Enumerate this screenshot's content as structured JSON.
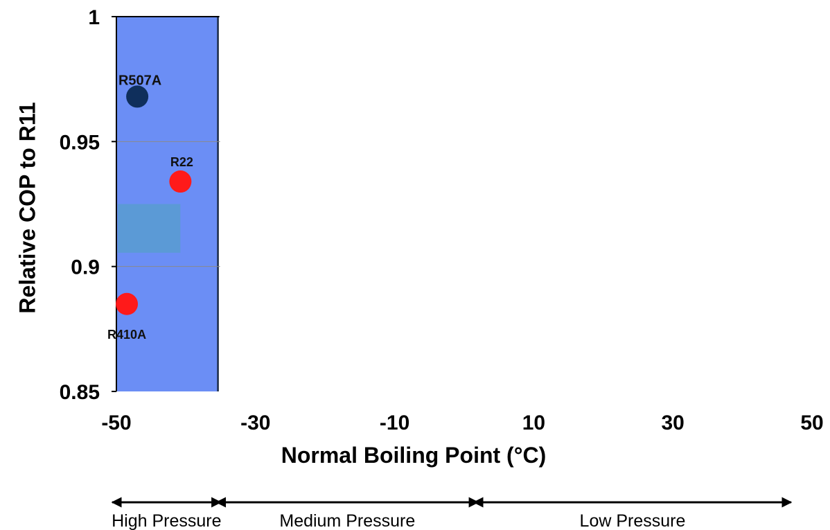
{
  "chart_data": {
    "type": "scatter",
    "xlabel": "Normal Boiling Point (°C)",
    "ylabel": "Relative COP to R11",
    "xlim": [
      -50,
      50
    ],
    "ylim": [
      0.85,
      1.0
    ],
    "x_ticks": [
      -50,
      -30,
      -10,
      10,
      30,
      50
    ],
    "x_tick_labels": [
      "-50",
      "-30",
      "-10",
      "10",
      "30",
      "50"
    ],
    "y_ticks": [
      0.85,
      0.9,
      0.95,
      1.0
    ],
    "y_tick_labels": [
      "0.85",
      "0.9",
      "0.95",
      "1"
    ],
    "grid": "horizontal",
    "points": [
      {
        "name": "R507A",
        "x": -47,
        "y": 0.968,
        "color": "#0f2f5c"
      },
      {
        "name": "R22",
        "x": -40.8,
        "y": 0.934,
        "color": "#ff1a1a"
      },
      {
        "name": "R410A",
        "x": -48.5,
        "y": 0.885,
        "color": "#ff1a1a"
      }
    ],
    "shaded_region": {
      "x": [
        -50,
        -35.4
      ],
      "color": "#6b8ef5"
    },
    "pressure_ranges": [
      {
        "label": "High Pressure",
        "x": [
          -50,
          -35
        ]
      },
      {
        "label": "Medium Pressure",
        "x": [
          -35,
          2
        ]
      },
      {
        "label": "Low Pressure",
        "x": [
          2,
          47
        ]
      }
    ]
  }
}
